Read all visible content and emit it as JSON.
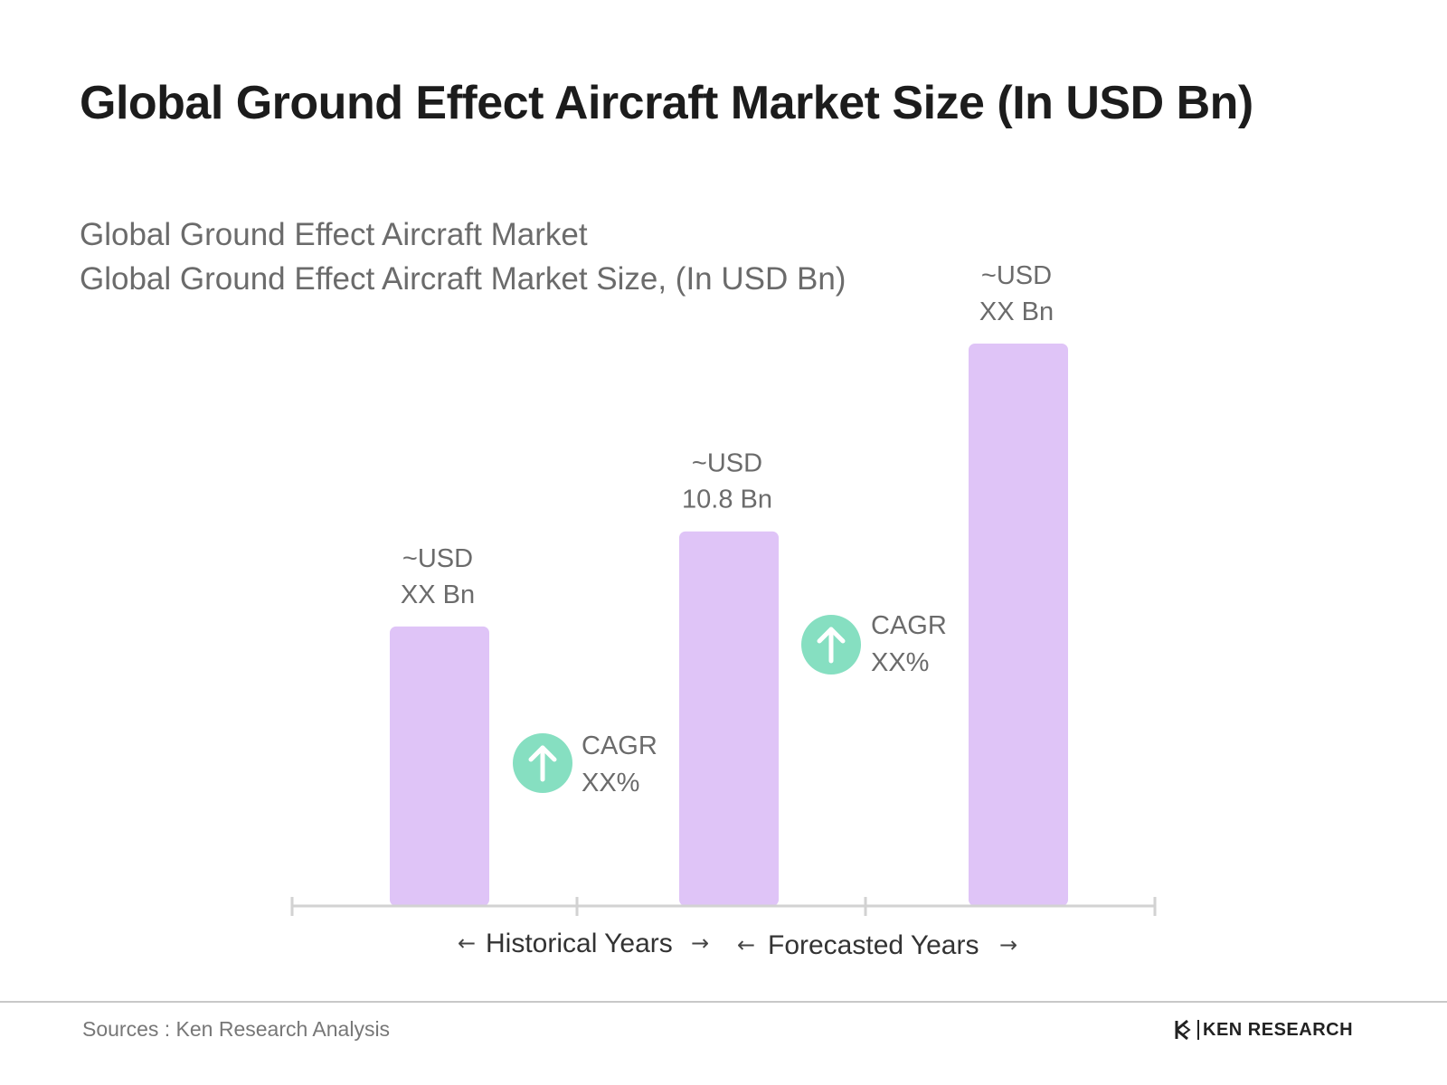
{
  "chart_data": {
    "type": "bar",
    "title": "Global Ground Effect Aircraft Market Size (In USD Bn)",
    "subtitle_line1": "Global Ground Effect Aircraft Market",
    "subtitle_line2": "Global Ground Effect Aircraft Market Size, (In USD Bn)",
    "relative_heights": [
      0.497,
      0.666,
      1.0
    ],
    "bar_labels": [
      {
        "line1": "~USD",
        "line2": "XX Bn"
      },
      {
        "line1": "~USD",
        "line2": "10.8 Bn"
      },
      {
        "line1": "~USD",
        "line2": "XX Bn"
      }
    ],
    "cagr": [
      {
        "line1": "CAGR",
        "line2": "XX%"
      },
      {
        "line1": "CAGR",
        "line2": "XX%"
      }
    ],
    "periods": [
      "Historical Years",
      "Forecasted Years"
    ],
    "bar_color": "#dfc4f7",
    "cagr_color": "#86dfc1"
  },
  "footer": {
    "source": "Sources : Ken Research Analysis",
    "brand": "KEN RESEARCH"
  }
}
